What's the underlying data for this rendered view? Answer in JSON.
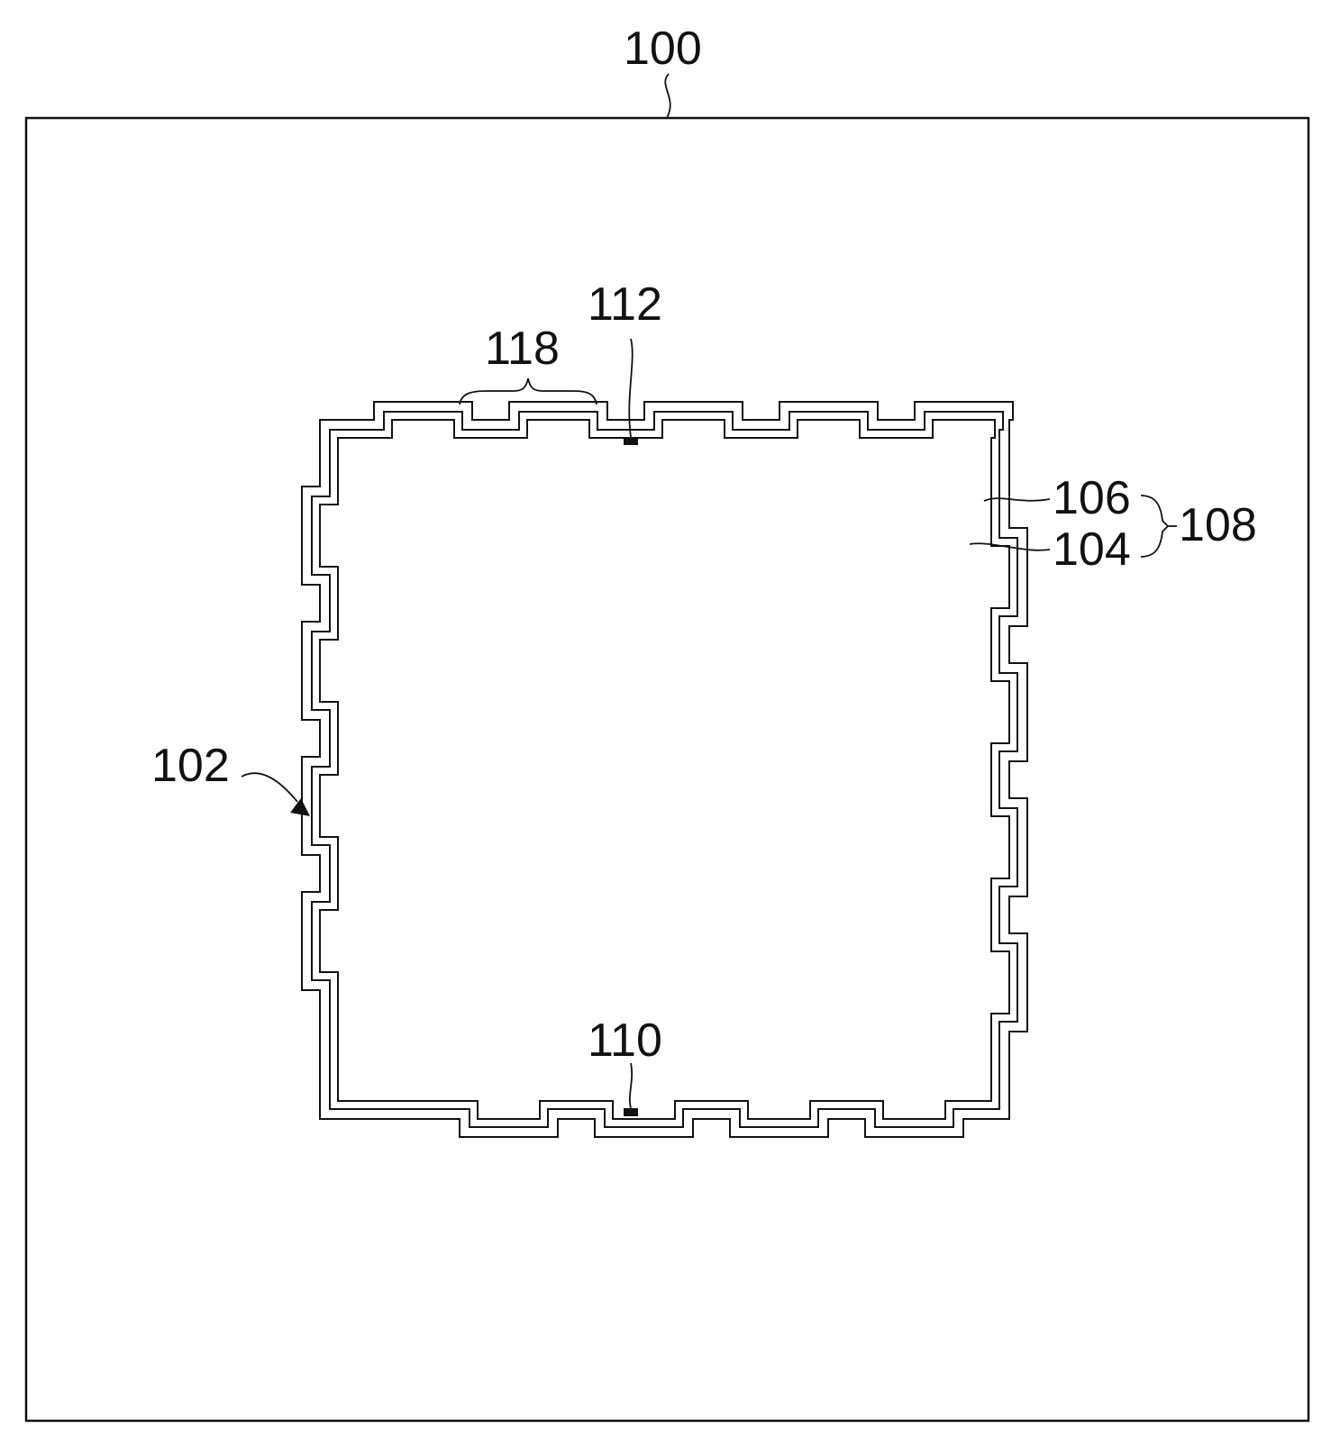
{
  "labels": {
    "substrate": "100",
    "pattern": "102",
    "line_inner": "104",
    "line_outer": "106",
    "line_pair": "108",
    "terminal_bottom": "110",
    "terminal_top": "112",
    "unit_pattern": "118"
  },
  "colors": {
    "stroke": "#111111",
    "background": "#ffffff"
  }
}
